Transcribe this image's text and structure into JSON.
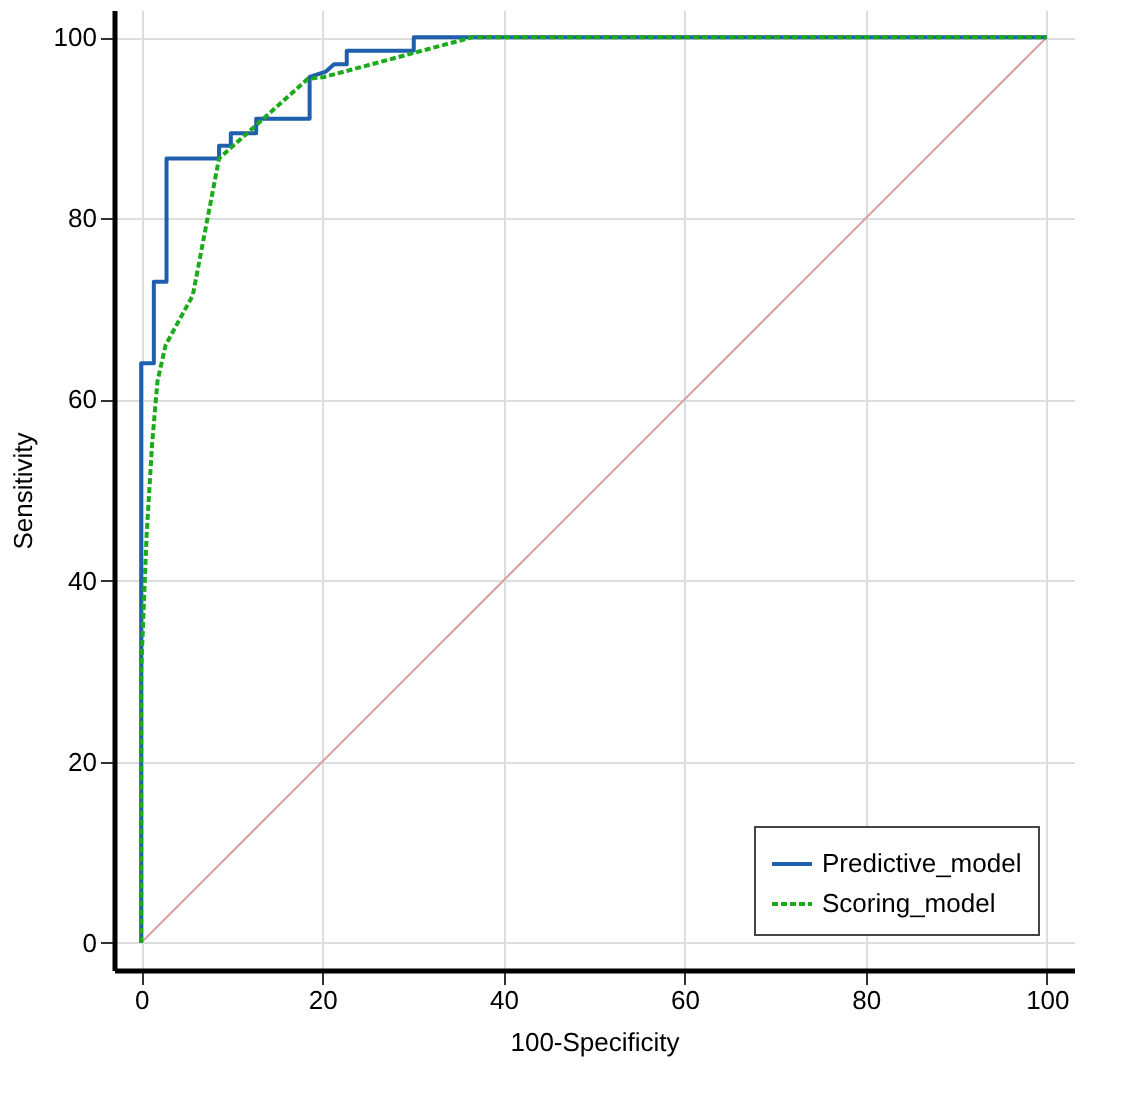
{
  "chart_data": {
    "type": "line",
    "xlabel": "100-Specificity",
    "ylabel": "Sensitivity",
    "xlim": [
      -3,
      103
    ],
    "ylim": [
      -3,
      103
    ],
    "xticks": [
      0,
      20,
      40,
      60,
      80,
      100
    ],
    "yticks": [
      0,
      20,
      40,
      60,
      80,
      100
    ],
    "grid": true,
    "legend": "bottom right",
    "series": [
      {
        "name": "Predictive_model",
        "color": "#1f5fad",
        "line_style": "solid",
        "x": [
          0,
          0,
          1.4,
          1.4,
          2.8,
          2.8,
          8.6,
          8.6,
          9.9,
          9.9,
          12.7,
          12.7,
          18.6,
          18.6,
          20.4,
          21.3,
          22.7,
          22.7,
          30.1,
          30.1,
          100
        ],
        "values": [
          0,
          64,
          64,
          73,
          73,
          86.6,
          86.6,
          88,
          88,
          89.4,
          89.4,
          91,
          91,
          95.6,
          96.2,
          97,
          97,
          98.5,
          98.5,
          100,
          100
        ]
      },
      {
        "name": "Scoring_model",
        "color": "#1aaa1a",
        "line_style": "dashed",
        "x": [
          0,
          0,
          0.6,
          1.2,
          1.8,
          2.7,
          5.7,
          8.6,
          18.4,
          20.2,
          36.6,
          100
        ],
        "values": [
          0,
          30,
          45,
          55,
          62,
          66,
          71.5,
          86.6,
          95.4,
          95.6,
          100,
          100
        ]
      },
      {
        "color": "#d9a0a0",
        "line_style": "solid",
        "x": [
          0,
          100
        ],
        "values": [
          0,
          100
        ]
      }
    ]
  }
}
